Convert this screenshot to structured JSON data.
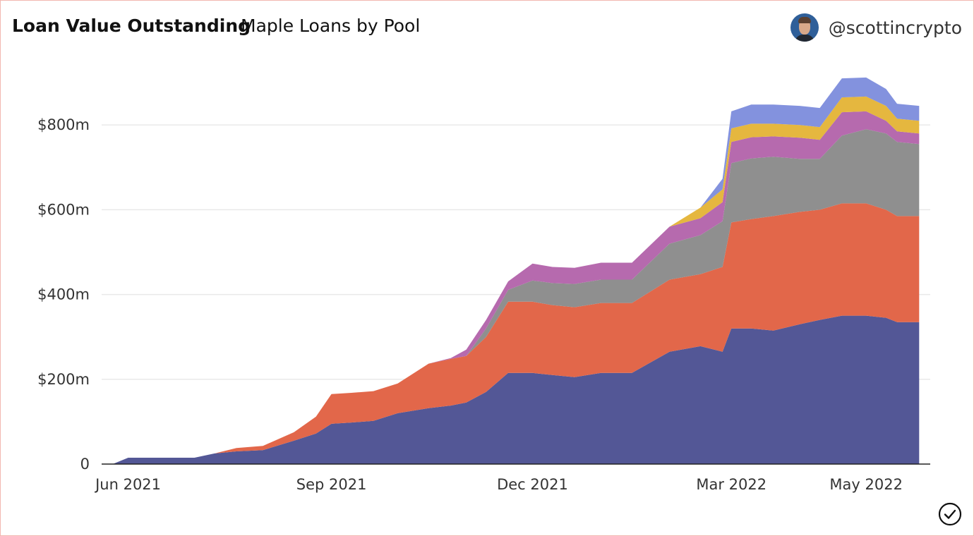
{
  "header": {
    "title": "Loan Value Outstanding",
    "subtitle": "Maple Loans by Pool",
    "author_handle": "@scottincrypto",
    "avatar_icon": "profile-photo"
  },
  "footer": {
    "status_icon": "check-circle-icon"
  },
  "chart_data": {
    "type": "area",
    "stacked": true,
    "title": "Loan Value Outstanding",
    "subtitle": "Maple Loans by Pool",
    "xlabel": "",
    "ylabel": "",
    "x": [
      "2021-05-25",
      "2021-06-01",
      "2021-06-15",
      "2021-07-01",
      "2021-07-10",
      "2021-07-20",
      "2021-08-01",
      "2021-08-15",
      "2021-08-25",
      "2021-09-01",
      "2021-09-10",
      "2021-09-20",
      "2021-10-01",
      "2021-10-15",
      "2021-10-25",
      "2021-11-01",
      "2021-11-10",
      "2021-11-20",
      "2021-12-01",
      "2021-12-10",
      "2021-12-20",
      "2022-01-01",
      "2022-01-15",
      "2022-02-01",
      "2022-02-15",
      "2022-02-25",
      "2022-03-01",
      "2022-03-10",
      "2022-03-20",
      "2022-04-01",
      "2022-04-10",
      "2022-04-20",
      "2022-05-01",
      "2022-05-10",
      "2022-05-15",
      "2022-05-25"
    ],
    "series": [
      {
        "color": "#535796",
        "values": [
          0,
          15,
          15,
          15,
          25,
          30,
          33,
          55,
          72,
          95,
          98,
          102,
          120,
          132,
          138,
          145,
          170,
          215,
          215,
          210,
          205,
          215,
          215,
          265,
          278,
          265,
          320,
          320,
          315,
          330,
          340,
          350,
          350,
          345,
          335,
          335
        ]
      },
      {
        "color": "#e2674a",
        "values": [
          0,
          0,
          0,
          0,
          0,
          8,
          10,
          20,
          40,
          70,
          70,
          70,
          70,
          105,
          110,
          110,
          130,
          168,
          168,
          165,
          165,
          165,
          165,
          170,
          170,
          200,
          250,
          258,
          270,
          265,
          260,
          265,
          265,
          255,
          250,
          250
        ]
      },
      {
        "color": "#8f8f8f",
        "values": [
          0,
          0,
          0,
          0,
          0,
          0,
          0,
          0,
          0,
          0,
          0,
          0,
          0,
          0,
          0,
          0,
          20,
          28,
          50,
          52,
          55,
          55,
          55,
          85,
          92,
          108,
          140,
          143,
          140,
          125,
          120,
          160,
          175,
          180,
          175,
          170
        ]
      },
      {
        "color": "#b66aae",
        "values": [
          0,
          0,
          0,
          0,
          0,
          0,
          0,
          0,
          0,
          0,
          0,
          0,
          0,
          0,
          2,
          15,
          20,
          20,
          40,
          38,
          38,
          40,
          40,
          40,
          40,
          45,
          50,
          50,
          48,
          50,
          45,
          55,
          42,
          30,
          25,
          25
        ]
      },
      {
        "color": "#e5b73f",
        "values": [
          0,
          0,
          0,
          0,
          0,
          0,
          0,
          0,
          0,
          0,
          0,
          0,
          0,
          0,
          0,
          0,
          0,
          0,
          0,
          0,
          0,
          0,
          0,
          0,
          25,
          30,
          32,
          32,
          30,
          30,
          30,
          35,
          35,
          35,
          30,
          30
        ]
      },
      {
        "color": "#8392de",
        "values": [
          0,
          0,
          0,
          0,
          0,
          0,
          0,
          0,
          0,
          0,
          0,
          0,
          0,
          0,
          0,
          0,
          0,
          0,
          0,
          0,
          0,
          0,
          0,
          0,
          0,
          25,
          40,
          45,
          45,
          45,
          45,
          45,
          45,
          40,
          35,
          35
        ]
      }
    ],
    "yticks": [
      0,
      200,
      400,
      600,
      800
    ],
    "ytick_labels": [
      "0",
      "$200m",
      "$400m",
      "$600m",
      "$800m"
    ],
    "xticks": [
      "2021-06-01",
      "2021-09-01",
      "2021-12-01",
      "2022-03-01",
      "2022-05-01"
    ],
    "xtick_labels": [
      "Jun 2021",
      "Sep 2021",
      "Dec 2021",
      "Mar 2022",
      "May 2022"
    ],
    "ylim": [
      0,
      960
    ],
    "unit": "$m",
    "grid": true,
    "legend": "none"
  }
}
